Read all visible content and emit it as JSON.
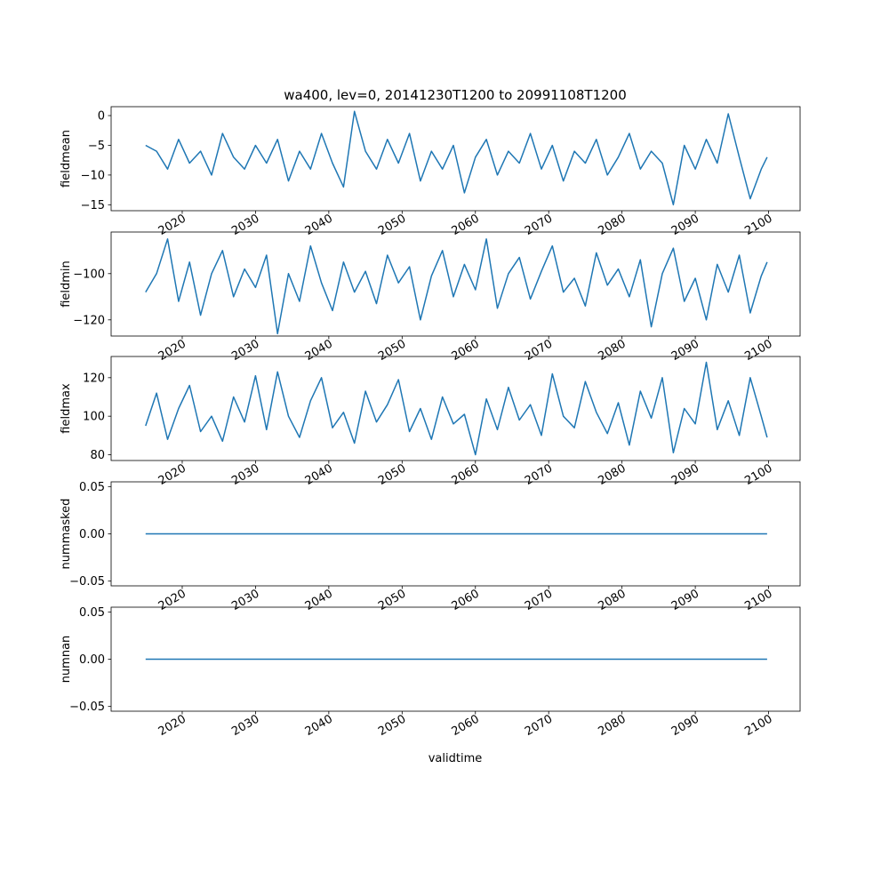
{
  "figure": {
    "title": "wa400, lev=0, 20141230T1200 to 20991108T1200",
    "xlabel": "validtime"
  },
  "colors": {
    "line": "#1f77b4",
    "axes": "#000000",
    "background": "#ffffff"
  },
  "chart_data": [
    {
      "type": "line",
      "ylabel": "fieldmean",
      "xlim": [
        2010.3,
        2104.3
      ],
      "ylim": [
        -16,
        1.5
      ],
      "yticks": [
        0,
        -5,
        -10,
        -15
      ],
      "ytick_labels": [
        "0",
        "−5",
        "−10",
        "−15"
      ],
      "xticks": [
        2020,
        2030,
        2040,
        2050,
        2060,
        2070,
        2080,
        2090,
        2100
      ],
      "xtick_labels": [
        "2020",
        "2030",
        "2040",
        "2050",
        "2060",
        "2070",
        "2080",
        "2090",
        "2100"
      ],
      "series": [
        {
          "x": [
            2015.0,
            2016.5,
            2018.0,
            2019.5,
            2021.0,
            2022.5,
            2024.0,
            2025.5,
            2027.0,
            2028.5,
            2030.0,
            2031.5,
            2033.0,
            2034.5,
            2036.0,
            2037.5,
            2039.0,
            2040.5,
            2042.0,
            2043.5,
            2045.0,
            2046.5,
            2048.0,
            2049.5,
            2051.0,
            2052.5,
            2054.0,
            2055.5,
            2057.0,
            2058.5,
            2060.0,
            2061.5,
            2063.0,
            2064.5,
            2066.0,
            2067.5,
            2069.0,
            2070.5,
            2072.0,
            2073.5,
            2075.0,
            2076.5,
            2078.0,
            2079.5,
            2081.0,
            2082.5,
            2084.0,
            2085.5,
            2087.0,
            2088.5,
            2090.0,
            2091.5,
            2093.0,
            2094.5,
            2096.0,
            2097.5,
            2099.0,
            2099.8
          ],
          "y": [
            -5,
            -6,
            -9,
            -4,
            -8,
            -6,
            -10,
            -3,
            -7,
            -9,
            -5,
            -8,
            -4,
            -11,
            -6,
            -9,
            -3,
            -8,
            -12,
            0.7,
            -6,
            -9,
            -4,
            -8,
            -3,
            -11,
            -6,
            -9,
            -5,
            -13,
            -7,
            -4,
            -10,
            -6,
            -8,
            -3,
            -9,
            -5,
            -11,
            -6,
            -8,
            -4,
            -10,
            -7,
            -3,
            -9,
            -6,
            -8,
            -15,
            -5,
            -9,
            -4,
            -8,
            0.3,
            -7,
            -14,
            -9,
            -7
          ]
        }
      ]
    },
    {
      "type": "line",
      "ylabel": "fieldmin",
      "xlim": [
        2010.3,
        2104.3
      ],
      "ylim": [
        -127,
        -82
      ],
      "yticks": [
        -100,
        -120
      ],
      "ytick_labels": [
        "−100",
        "−120"
      ],
      "xticks": [
        2020,
        2030,
        2040,
        2050,
        2060,
        2070,
        2080,
        2090,
        2100
      ],
      "xtick_labels": [
        "2020",
        "2030",
        "2040",
        "2050",
        "2060",
        "2070",
        "2080",
        "2090",
        "2100"
      ],
      "series": [
        {
          "x": [
            2015.0,
            2016.5,
            2018.0,
            2019.5,
            2021.0,
            2022.5,
            2024.0,
            2025.5,
            2027.0,
            2028.5,
            2030.0,
            2031.5,
            2033.0,
            2034.5,
            2036.0,
            2037.5,
            2039.0,
            2040.5,
            2042.0,
            2043.5,
            2045.0,
            2046.5,
            2048.0,
            2049.5,
            2051.0,
            2052.5,
            2054.0,
            2055.5,
            2057.0,
            2058.5,
            2060.0,
            2061.5,
            2063.0,
            2064.5,
            2066.0,
            2067.5,
            2069.0,
            2070.5,
            2072.0,
            2073.5,
            2075.0,
            2076.5,
            2078.0,
            2079.5,
            2081.0,
            2082.5,
            2084.0,
            2085.5,
            2087.0,
            2088.5,
            2090.0,
            2091.5,
            2093.0,
            2094.5,
            2096.0,
            2097.5,
            2099.0,
            2099.8
          ],
          "y": [
            -108,
            -100,
            -85,
            -112,
            -95,
            -118,
            -100,
            -90,
            -110,
            -98,
            -106,
            -92,
            -126,
            -100,
            -112,
            -88,
            -104,
            -116,
            -95,
            -108,
            -99,
            -113,
            -92,
            -104,
            -97,
            -120,
            -101,
            -90,
            -110,
            -96,
            -107,
            -85,
            -115,
            -100,
            -93,
            -111,
            -99,
            -88,
            -108,
            -102,
            -114,
            -91,
            -105,
            -98,
            -110,
            -94,
            -123,
            -100,
            -89,
            -112,
            -102,
            -120,
            -96,
            -108,
            -92,
            -117,
            -101,
            -95
          ]
        }
      ]
    },
    {
      "type": "line",
      "ylabel": "fieldmax",
      "xlim": [
        2010.3,
        2104.3
      ],
      "ylim": [
        77,
        131
      ],
      "yticks": [
        120,
        100,
        80
      ],
      "ytick_labels": [
        "120",
        "100",
        "80"
      ],
      "xticks": [
        2020,
        2030,
        2040,
        2050,
        2060,
        2070,
        2080,
        2090,
        2100
      ],
      "xtick_labels": [
        "2020",
        "2030",
        "2040",
        "2050",
        "2060",
        "2070",
        "2080",
        "2090",
        "2100"
      ],
      "series": [
        {
          "x": [
            2015.0,
            2016.5,
            2018.0,
            2019.5,
            2021.0,
            2022.5,
            2024.0,
            2025.5,
            2027.0,
            2028.5,
            2030.0,
            2031.5,
            2033.0,
            2034.5,
            2036.0,
            2037.5,
            2039.0,
            2040.5,
            2042.0,
            2043.5,
            2045.0,
            2046.5,
            2048.0,
            2049.5,
            2051.0,
            2052.5,
            2054.0,
            2055.5,
            2057.0,
            2058.5,
            2060.0,
            2061.5,
            2063.0,
            2064.5,
            2066.0,
            2067.5,
            2069.0,
            2070.5,
            2072.0,
            2073.5,
            2075.0,
            2076.5,
            2078.0,
            2079.5,
            2081.0,
            2082.5,
            2084.0,
            2085.5,
            2087.0,
            2088.5,
            2090.0,
            2091.5,
            2093.0,
            2094.5,
            2096.0,
            2097.5,
            2099.0,
            2099.8
          ],
          "y": [
            95,
            112,
            88,
            104,
            116,
            92,
            100,
            87,
            110,
            97,
            121,
            93,
            123,
            100,
            89,
            108,
            120,
            94,
            102,
            86,
            113,
            97,
            106,
            119,
            92,
            104,
            88,
            110,
            96,
            101,
            80,
            109,
            93,
            115,
            98,
            106,
            90,
            122,
            100,
            94,
            118,
            102,
            91,
            107,
            85,
            113,
            99,
            120,
            81,
            104,
            96,
            128,
            93,
            108,
            90,
            120,
            100,
            89
          ]
        }
      ]
    },
    {
      "type": "line",
      "ylabel": "nummasked",
      "xlim": [
        2010.3,
        2104.3
      ],
      "ylim": [
        -0.055,
        0.055
      ],
      "yticks": [
        0.05,
        0.0,
        -0.05
      ],
      "ytick_labels": [
        "0.05",
        "0.00",
        "−0.05"
      ],
      "xticks": [
        2020,
        2030,
        2040,
        2050,
        2060,
        2070,
        2080,
        2090,
        2100
      ],
      "xtick_labels": [
        "2020",
        "2030",
        "2040",
        "2050",
        "2060",
        "2070",
        "2080",
        "2090",
        "2100"
      ],
      "series": [
        {
          "x": [
            2015.0,
            2099.8
          ],
          "y": [
            0,
            0
          ]
        }
      ]
    },
    {
      "type": "line",
      "ylabel": "numnan",
      "xlim": [
        2010.3,
        2104.3
      ],
      "ylim": [
        -0.055,
        0.055
      ],
      "yticks": [
        0.05,
        0.0,
        -0.05
      ],
      "ytick_labels": [
        "0.05",
        "0.00",
        "−0.05"
      ],
      "xticks": [
        2020,
        2030,
        2040,
        2050,
        2060,
        2070,
        2080,
        2090,
        2100
      ],
      "xtick_labels": [
        "2020",
        "2030",
        "2040",
        "2050",
        "2060",
        "2070",
        "2080",
        "2090",
        "2100"
      ],
      "series": [
        {
          "x": [
            2015.0,
            2099.8
          ],
          "y": [
            0,
            0
          ]
        }
      ]
    }
  ]
}
